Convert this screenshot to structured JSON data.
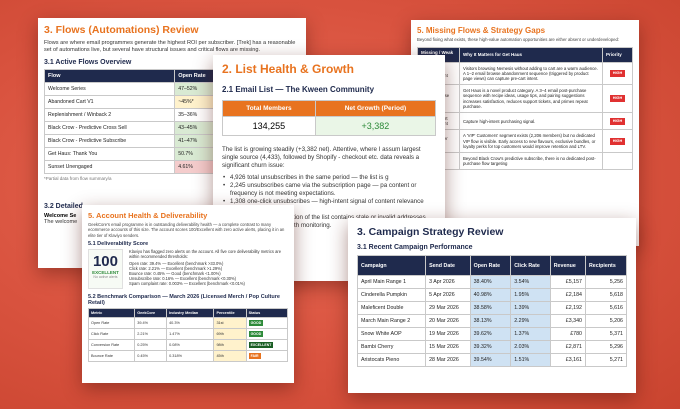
{
  "flows_doc": {
    "title": "3. Flows (Automations) Review",
    "intro": "Flows are where email programmes generate the highest ROI per subscriber. [Trek] has a reasonable set of automations live, but several have structural issues and critical flows are missing.",
    "section": "3.1 Active Flows Overview",
    "headers": [
      "Flow",
      "Open Rate",
      "Click Rate",
      "Re"
    ],
    "rows": [
      {
        "flow": "Welcome Series",
        "open": "47–52%",
        "click": "1.3–7.7%",
        "re": "",
        "oc": "g",
        "cc": "g"
      },
      {
        "flow": "Abandoned Cart V1",
        "open": "~45%*",
        "click": "~1.5%*",
        "re": "",
        "oc": "y",
        "cc": "y"
      },
      {
        "flow": "Replenishment / Winback 2",
        "open": "35–36%",
        "click": "~5.2%",
        "re": "",
        "oc": "",
        "cc": "g"
      },
      {
        "flow": "Black Crow - Predictive Cross Sell",
        "open": "43–45%",
        "click": "1.1–2.6%",
        "re": "$9",
        "oc": "g",
        "cc": "y"
      },
      {
        "flow": "Black Crow - Predictive Subscribe",
        "open": "41–47%",
        "click": "4.0–4.8%",
        "re": "$1",
        "oc": "g",
        "cc": "g"
      },
      {
        "flow": "Get Haus: Thank You",
        "open": "50.7%",
        "click": "2.58%",
        "re": "",
        "oc": "g",
        "cc": "g"
      },
      {
        "flow": "Sunset Unengaged",
        "open": "4.61%",
        "click": "0.48%",
        "re": "",
        "oc": "r",
        "cc": "r"
      }
    ],
    "note": "*Partial data from flow summary/a",
    "section2": "3.2 Detailed",
    "welcome": "Welcome Se",
    "welcome_text": "The welcome"
  },
  "list_doc": {
    "title": "2. List Health & Growth",
    "section": "2.1 Email List — The Kween Community",
    "header_members": "Total Members",
    "header_growth": "Net Growth (Period)",
    "members": "134,255",
    "growth": "+3,382",
    "para": "The list is growing steadily (+3,382 net). Attentive, where I assum largest single source (4,433), followed by Shopify - checkout etc. data reveals a significant churn issue:",
    "bullets": [
      "4,926 total unsubscribes in the same period — the list is g",
      "2,245 unsubscribes came via the subscription page — pa content or frequency is not meeting expectations.",
      "1,308 one-click unsubscribes — high-intent signal of content relevance friction.",
      "— a meaningful proportion of the list contains stale or invalid addresses.",
      "— manageable but worth monitoring."
    ]
  },
  "missing_doc": {
    "title": "5. Missing Flows & Strategy Gaps",
    "intro": "Beyond fixing what exists, these high-value automation opportunities are either absent or underdeveloped:",
    "headers": [
      "Missing / Weak Flow",
      "Why It Matters for Get Haus",
      "Priority"
    ],
    "rows": [
      {
        "flow": "Browse Abandonment",
        "why": "Visitors browsing Nemesis without adding to cart are a warm audience. A 1–2 email browse abandonment sequence (triggered by product page views) can capture pre-cart intent.",
        "priority": "HIGH"
      },
      {
        "flow": "Post-Purchase Education",
        "why": "Get Haus is a novel product category. A 3–4 email post-purchase sequence with recipe ideas, usage tips, and pairing suggestions increases satisfaction, reduces support tickets, and primes repeat purchase.",
        "priority": "HIGH"
      },
      {
        "flow": "Added to Cart Abandonment",
        "why": "Capture high-intent purchasing signal.",
        "priority": "HIGH"
      },
      {
        "flow": "VIP Customer Flow",
        "why": "A 'VIP' Customers' segment exists (2,206 members) but no dedicated VIP flow is visible. Early access to new flavours, exclusive bundles, or loyalty perks for top customers would improve retention and LTV.",
        "priority": "HIGH"
      },
      {
        "flow": "Subscription Upgrade",
        "why": "Beyond Black Crow's predictive subscribe, there is no dedicated post-purchase flow targeting",
        "priority": ""
      }
    ]
  },
  "account_doc": {
    "title": "5. Account Health & Deliverability",
    "intro": "GeekCore's email programme is in outstanding deliverability health — a complete contrast to many ecommerce accounts of this size. The account scores 100/Excellent with zero active alerts, placing it in an elite tier of Klaviyo senders.",
    "section": "5.1 Deliverability Score",
    "score": "100",
    "score_label": "EXCELLENT",
    "score_sub": "No active alerts",
    "lead": "Klaviyo has flagged zero alerts on the account. All five core deliverability metrics are within recommended thresholds:",
    "metrics": [
      "Open rate: 39.4% — Excellent (benchmark >33.0%)",
      "Click rate: 2.21% — Excellent (benchmark >1.29%)",
      "Bounce rate: 0.45% — Good (benchmark <1.00%)",
      "Unsubscribe rate: 0.16% — Excellent (benchmark <0.30%)",
      "Spam complaint rate: 0.003% — Excellent (benchmark <0.01%)"
    ],
    "section2": "5.2 Benchmark Comparison — March 2026 (Licensed Merch / Pop Culture Retail)",
    "headers": [
      "Metric",
      "GeekCore",
      "Industry Median",
      "Percentile",
      "Status"
    ],
    "rows": [
      {
        "metric": "Open Rate",
        "value": "39.4%",
        "median": "40.3%",
        "pct": "31st",
        "status": "GOOD",
        "kind": "good"
      },
      {
        "metric": "Click Rate",
        "value": "2.21%",
        "median": "1.47%",
        "pct": "69th",
        "status": "GOOD",
        "kind": "good"
      },
      {
        "metric": "Conversion Rate",
        "value": "0.25%",
        "median": "0.08%",
        "pct": "98th",
        "status": "EXCELLENT",
        "kind": "exc"
      },
      {
        "metric": "Bounce Rate",
        "value": "0.45%",
        "median": "0.318%",
        "pct": "45th",
        "status": "FAIR",
        "kind": "fair"
      }
    ]
  },
  "campaign_doc": {
    "title": "3. Campaign Strategy Review",
    "section": "3.1 Recent Campaign Performance",
    "headers": [
      "Campaign",
      "Send Date",
      "Open Rate",
      "Click Rate",
      "Revenue",
      "Recipients"
    ],
    "rows": [
      {
        "name": "April Main Range 1",
        "date": "3 Apr 2026",
        "open": "38.40%",
        "click": "3.54%",
        "rev": "£5,157",
        "rec": "5,256"
      },
      {
        "name": "Cinderella Pumpkin",
        "date": "5 Apr 2026",
        "open": "40.98%",
        "click": "1.95%",
        "rev": "£2,184",
        "rec": "5,618"
      },
      {
        "name": "Maleficent Double",
        "date": "29 Mar 2026",
        "open": "38.58%",
        "click": "1.39%",
        "rev": "£2,192",
        "rec": "5,616"
      },
      {
        "name": "March Main Range 2",
        "date": "20 Mar 2026",
        "open": "38.13%",
        "click": "2.29%",
        "rev": "£3,340",
        "rec": "5,206"
      },
      {
        "name": "Snow White AOP",
        "date": "19 Mar 2026",
        "open": "39.62%",
        "click": "1.37%",
        "rev": "£780",
        "rec": "5,371"
      },
      {
        "name": "Bambi Cherry",
        "date": "15 Mar 2026",
        "open": "39.32%",
        "click": "2.03%",
        "rev": "£2,871",
        "rec": "5,296"
      },
      {
        "name": "Aristocats Pieno",
        "date": "28 Mar 2026",
        "open": "39.54%",
        "click": "1.51%",
        "rev": "£3,161",
        "rec": "5,271"
      }
    ]
  }
}
